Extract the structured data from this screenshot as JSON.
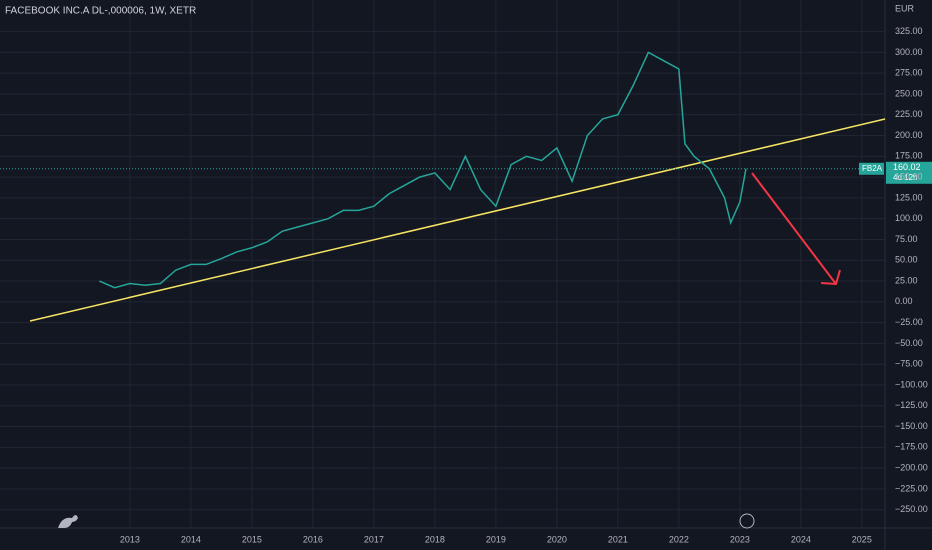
{
  "chart_data": {
    "type": "line",
    "title": "FACEBOOK INC.A DL-,000006, 1W, XETR",
    "currency": "EUR",
    "symbol": "FB2A",
    "last_price": 160.02,
    "last_price_label": "160.02",
    "countdown": "4d 12h",
    "color": "#26a69a",
    "grid": true,
    "x": [
      2012.5,
      2012.75,
      2013.0,
      2013.25,
      2013.5,
      2013.75,
      2014.0,
      2014.25,
      2014.5,
      2014.75,
      2015.0,
      2015.25,
      2015.5,
      2015.75,
      2016.0,
      2016.25,
      2016.5,
      2016.75,
      2017.0,
      2017.25,
      2017.5,
      2017.75,
      2018.0,
      2018.25,
      2018.5,
      2018.75,
      2019.0,
      2019.25,
      2019.5,
      2019.75,
      2020.0,
      2020.25,
      2020.5,
      2020.75,
      2021.0,
      2021.25,
      2021.5,
      2021.75,
      2022.0,
      2022.1,
      2022.25,
      2022.5,
      2022.75,
      2022.85,
      2023.0,
      2023.1
    ],
    "values": [
      25,
      17,
      22,
      20,
      22,
      38,
      45,
      45,
      52,
      60,
      65,
      72,
      85,
      90,
      95,
      100,
      110,
      110,
      115,
      130,
      140,
      150,
      155,
      135,
      175,
      135,
      115,
      165,
      175,
      170,
      185,
      145,
      200,
      220,
      225,
      260,
      300,
      290,
      280,
      190,
      175,
      160,
      125,
      95,
      120,
      160
    ],
    "xlim": [
      2010.87,
      2025.38
    ],
    "xticks": [
      2013,
      2014,
      2015,
      2016,
      2017,
      2018,
      2019,
      2020,
      2021,
      2022,
      2023,
      2024,
      2025
    ],
    "ylim": [
      -272,
      363
    ],
    "yticks": [
      {
        "value": 325,
        "label": "325.00"
      },
      {
        "value": 300,
        "label": "300.00"
      },
      {
        "value": 275,
        "label": "275.00"
      },
      {
        "value": 250,
        "label": "250.00"
      },
      {
        "value": 225,
        "label": "225.00"
      },
      {
        "value": 200,
        "label": "200.00"
      },
      {
        "value": 175,
        "label": "175.00"
      },
      {
        "value": 150,
        "label": "150.00"
      },
      {
        "value": 125,
        "label": "125.00"
      },
      {
        "value": 100,
        "label": "100.00"
      },
      {
        "value": 75,
        "label": "75.00"
      },
      {
        "value": 50,
        "label": "50.00"
      },
      {
        "value": 25,
        "label": "25.00"
      },
      {
        "value": 0,
        "label": "0.00"
      },
      {
        "value": -25,
        "label": "−25.00"
      },
      {
        "value": -50,
        "label": "−50.00"
      },
      {
        "value": -75,
        "label": "−75.00"
      },
      {
        "value": -100,
        "label": "−100.00"
      },
      {
        "value": -125,
        "label": "−125.00"
      },
      {
        "value": -150,
        "label": "−150.00"
      },
      {
        "value": -175,
        "label": "−175.00"
      },
      {
        "value": -200,
        "label": "−200.00"
      },
      {
        "value": -225,
        "label": "−225.00"
      },
      {
        "value": -250,
        "label": "−250.00"
      }
    ]
  }
}
